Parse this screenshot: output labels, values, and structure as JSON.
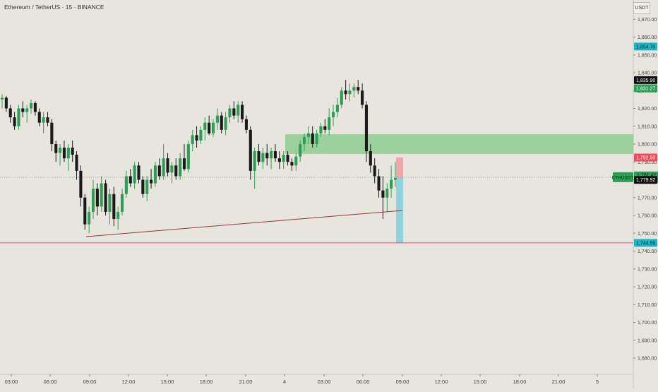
{
  "header": {
    "title": "Ethereum / TetherUS · 15 · BINANCE",
    "currency": "USDT"
  },
  "colors": {
    "background": "#e8e4de",
    "bull": "#2e9e57",
    "bear": "#1a1a1a",
    "demand_zone": "#8fce8f",
    "stop_zone": "#f4a5a8",
    "target_zone": "#8fd3df",
    "support_line": "#ea4d6b",
    "trend_line": "#8b3a3a"
  },
  "chart_data": {
    "type": "candlestick",
    "symbol": "ETHUSDT",
    "interval": "15",
    "exchange": "BINANCE",
    "y_axis": {
      "range": [
        1675,
        1880
      ],
      "ticks": [
        1870,
        1860,
        1850,
        1840,
        1830,
        1820,
        1810,
        1800,
        1790,
        1780,
        1770,
        1760,
        1750,
        1740,
        1730,
        1720,
        1710,
        1700,
        1690,
        1680
      ],
      "tick_labels": [
        "1,870.00",
        "1,860.00",
        "1,850.00",
        "1,840.00",
        "1,830.00",
        "1,820.00",
        "1,810.00",
        "1,800.00",
        "1,790.00",
        "1,780.00",
        "1,770.00",
        "1,760.00",
        "1,750.00",
        "1,740.00",
        "1,730.00",
        "1,720.00",
        "1,710.00",
        "1,700.00",
        "1,690.00",
        "1,680.00"
      ]
    },
    "x_axis": {
      "tick_labels": [
        "03:00",
        "06:00",
        "09:00",
        "12:00",
        "15:00",
        "18:00",
        "21:00",
        "4",
        "03:00",
        "06:00",
        "09:00",
        "12:00",
        "15:00",
        "18:00",
        "21:00",
        "5"
      ],
      "tick_x": [
        16,
        71,
        127,
        182,
        237,
        292,
        348,
        403,
        459,
        514,
        570,
        625,
        680,
        736,
        791,
        846
      ]
    },
    "price_tags": [
      {
        "label": "1,854.70",
        "value": 1854.7,
        "color": "#22b3c4"
      },
      {
        "label": "1,835.90",
        "value": 1835.9,
        "color": "#111111"
      },
      {
        "label": "1,831.27",
        "value": 1831.27,
        "color": "#2e9e57"
      },
      {
        "label": "1,792.50",
        "value": 1792.5,
        "color": "#e84f5c"
      },
      {
        "label": "1,781.42",
        "value": 1781.42,
        "color": "#2e9e57",
        "name": "ETHUSDT",
        "sub": "00:05"
      },
      {
        "label": "1,779.92",
        "value": 1779.92,
        "color": "#111111"
      },
      {
        "label": "1,744.59",
        "value": 1744.59,
        "color": "#22b3c4"
      }
    ],
    "horizontal_lines": [
      {
        "value": 1744.59,
        "color": "#ea4d6b"
      }
    ],
    "zones": [
      {
        "type": "demand",
        "top": 1805.5,
        "bottom": 1794.5
      },
      {
        "type": "stop",
        "top": 1792.5,
        "bottom": 1781.4
      },
      {
        "type": "target",
        "top": 1781.4,
        "bottom": 1744.59
      }
    ],
    "candles": [
      [
        1825,
        1828,
        1820,
        1826
      ],
      [
        1826,
        1827,
        1818,
        1820
      ],
      [
        1820,
        1822,
        1812,
        1815
      ],
      [
        1815,
        1818,
        1808,
        1810
      ],
      [
        1810,
        1822,
        1808,
        1820
      ],
      [
        1820,
        1824,
        1815,
        1818
      ],
      [
        1818,
        1822,
        1812,
        1820
      ],
      [
        1820,
        1825,
        1817,
        1823
      ],
      [
        1823,
        1824,
        1816,
        1818
      ],
      [
        1818,
        1820,
        1810,
        1812
      ],
      [
        1812,
        1818,
        1806,
        1815
      ],
      [
        1815,
        1818,
        1810,
        1812
      ],
      [
        1812,
        1814,
        1796,
        1800
      ],
      [
        1800,
        1802,
        1790,
        1795
      ],
      [
        1795,
        1800,
        1788,
        1798
      ],
      [
        1798,
        1802,
        1790,
        1792
      ],
      [
        1792,
        1800,
        1785,
        1798
      ],
      [
        1798,
        1802,
        1790,
        1794
      ],
      [
        1794,
        1796,
        1780,
        1785
      ],
      [
        1785,
        1788,
        1765,
        1770
      ],
      [
        1770,
        1772,
        1752,
        1755
      ],
      [
        1755,
        1765,
        1750,
        1762
      ],
      [
        1762,
        1780,
        1758,
        1775
      ],
      [
        1775,
        1778,
        1760,
        1765
      ],
      [
        1765,
        1782,
        1762,
        1778
      ],
      [
        1778,
        1780,
        1760,
        1762
      ],
      [
        1762,
        1775,
        1755,
        1772
      ],
      [
        1772,
        1776,
        1754,
        1758
      ],
      [
        1758,
        1765,
        1752,
        1762
      ],
      [
        1762,
        1775,
        1760,
        1772
      ],
      [
        1772,
        1785,
        1770,
        1782
      ],
      [
        1782,
        1786,
        1776,
        1778
      ],
      [
        1778,
        1790,
        1775,
        1788
      ],
      [
        1788,
        1790,
        1778,
        1780
      ],
      [
        1780,
        1782,
        1770,
        1772
      ],
      [
        1772,
        1782,
        1768,
        1780
      ],
      [
        1780,
        1786,
        1775,
        1778
      ],
      [
        1778,
        1790,
        1776,
        1788
      ],
      [
        1788,
        1792,
        1780,
        1782
      ],
      [
        1782,
        1800,
        1780,
        1792
      ],
      [
        1792,
        1795,
        1782,
        1784
      ],
      [
        1784,
        1790,
        1778,
        1788
      ],
      [
        1788,
        1792,
        1780,
        1782
      ],
      [
        1782,
        1795,
        1780,
        1792
      ],
      [
        1792,
        1800,
        1785,
        1786
      ],
      [
        1786,
        1802,
        1784,
        1800
      ],
      [
        1800,
        1808,
        1796,
        1805
      ],
      [
        1805,
        1810,
        1798,
        1802
      ],
      [
        1802,
        1810,
        1800,
        1808
      ],
      [
        1808,
        1815,
        1802,
        1812
      ],
      [
        1812,
        1816,
        1805,
        1806
      ],
      [
        1806,
        1814,
        1804,
        1812
      ],
      [
        1812,
        1820,
        1808,
        1816
      ],
      [
        1816,
        1818,
        1806,
        1808
      ],
      [
        1808,
        1818,
        1805,
        1815
      ],
      [
        1815,
        1822,
        1812,
        1820
      ],
      [
        1820,
        1824,
        1814,
        1816
      ],
      [
        1816,
        1824,
        1812,
        1822
      ],
      [
        1822,
        1824,
        1812,
        1814
      ],
      [
        1814,
        1816,
        1806,
        1808
      ],
      [
        1808,
        1810,
        1780,
        1785
      ],
      [
        1785,
        1798,
        1775,
        1796
      ],
      [
        1796,
        1800,
        1788,
        1790
      ],
      [
        1790,
        1798,
        1786,
        1795
      ],
      [
        1795,
        1800,
        1788,
        1792
      ],
      [
        1792,
        1798,
        1786,
        1796
      ],
      [
        1796,
        1800,
        1790,
        1792
      ],
      [
        1792,
        1796,
        1786,
        1790
      ],
      [
        1790,
        1796,
        1786,
        1794
      ],
      [
        1794,
        1796,
        1788,
        1790
      ],
      [
        1790,
        1792,
        1785,
        1788
      ],
      [
        1788,
        1795,
        1785,
        1793
      ],
      [
        1793,
        1802,
        1790,
        1800
      ],
      [
        1800,
        1806,
        1796,
        1804
      ],
      [
        1804,
        1810,
        1800,
        1806
      ],
      [
        1806,
        1810,
        1798,
        1800
      ],
      [
        1800,
        1808,
        1798,
        1806
      ],
      [
        1806,
        1812,
        1804,
        1810
      ],
      [
        1810,
        1814,
        1806,
        1808
      ],
      [
        1808,
        1820,
        1805,
        1815
      ],
      [
        1815,
        1822,
        1810,
        1818
      ],
      [
        1818,
        1826,
        1815,
        1822
      ],
      [
        1822,
        1832,
        1820,
        1830
      ],
      [
        1830,
        1836,
        1825,
        1828
      ],
      [
        1828,
        1834,
        1824,
        1830
      ],
      [
        1830,
        1834,
        1826,
        1832
      ],
      [
        1832,
        1836,
        1828,
        1830
      ],
      [
        1830,
        1834,
        1820,
        1822
      ],
      [
        1822,
        1824,
        1790,
        1796
      ],
      [
        1796,
        1800,
        1784,
        1788
      ],
      [
        1788,
        1792,
        1778,
        1782
      ],
      [
        1782,
        1786,
        1770,
        1774
      ],
      [
        1774,
        1782,
        1758,
        1770
      ],
      [
        1770,
        1778,
        1762,
        1775
      ],
      [
        1775,
        1788,
        1770,
        1780
      ],
      [
        1780,
        1790,
        1776,
        1781
      ]
    ]
  }
}
